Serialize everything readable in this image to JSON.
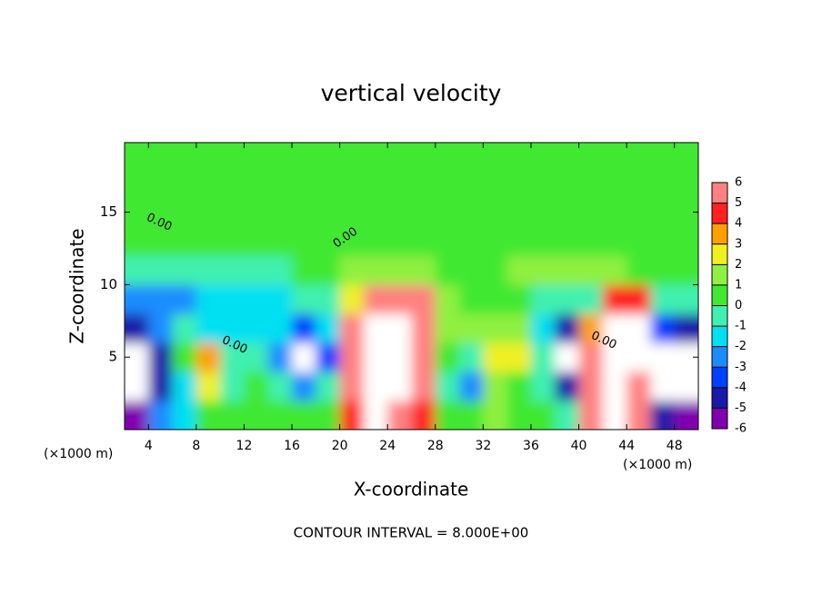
{
  "chart_data": {
    "type": "contour",
    "title": "vertical velocity",
    "xlabel": "X-coordinate",
    "ylabel": "Z-coordinate",
    "x_unit": "(×1000 m)",
    "y_unit": "(×1000 m)",
    "footer": "CONTOUR INTERVAL = 8.000E+00",
    "xlim": [
      2,
      50
    ],
    "ylim": [
      0,
      19.8
    ],
    "xticks": [
      4,
      8,
      12,
      16,
      20,
      24,
      28,
      32,
      36,
      40,
      44,
      48
    ],
    "yticks": [
      5,
      10,
      15
    ],
    "x": [
      3,
      5,
      7,
      9,
      11,
      13,
      15,
      17,
      19,
      21,
      23,
      25,
      27,
      29,
      31,
      33,
      35,
      37,
      39,
      41,
      43,
      45,
      47,
      49
    ],
    "y": [
      1,
      3,
      5,
      7,
      9,
      11,
      13,
      15,
      17,
      19
    ],
    "z": [
      [
        -5.5,
        -3,
        -2,
        0.5,
        0.5,
        0.5,
        0.5,
        0,
        0.5,
        4,
        6.5,
        5.5,
        4,
        0.5,
        0.5,
        1,
        0.5,
        0.5,
        -1,
        5,
        6.5,
        5,
        -5,
        -6
      ],
      [
        -8,
        -5,
        -2,
        2,
        -1,
        0.5,
        -1,
        -3,
        -1,
        5.5,
        8,
        8,
        5.5,
        -1,
        -2.5,
        1,
        0.5,
        -1,
        -5,
        6,
        8,
        5.5,
        -6.5,
        -8
      ],
      [
        -8,
        -5,
        0.5,
        3,
        -1,
        -1,
        -3,
        -7,
        -4,
        5.5,
        9,
        9,
        5.5,
        0.5,
        -1,
        2,
        2,
        -1,
        -8,
        5.5,
        9,
        7,
        -6.5,
        -8
      ],
      [
        -5,
        -3,
        -1,
        -1.5,
        -1.5,
        -1.5,
        -1.5,
        -4,
        -2,
        5.5,
        8,
        8,
        5,
        1,
        1,
        1,
        1,
        -2,
        -5,
        3,
        6.5,
        6.5,
        -4,
        -5
      ],
      [
        -3,
        -3,
        -3,
        -1.5,
        -1.5,
        -1.5,
        -1.5,
        -1,
        -1,
        2,
        5,
        5,
        5,
        1.5,
        0.5,
        0.5,
        0.5,
        -1,
        -1,
        -1,
        4,
        4,
        -1,
        -1
      ],
      [
        -0.5,
        -0.5,
        -0.5,
        -0.5,
        -0.5,
        -0.5,
        -0.5,
        0.3,
        0.3,
        1.5,
        1.5,
        1.5,
        1.5,
        0.3,
        0.3,
        0.5,
        1.5,
        1.5,
        1.5,
        1.5,
        1.5,
        0.8,
        0.5,
        0.5
      ],
      [
        0.3,
        0.3,
        0.3,
        0.3,
        0.3,
        0.3,
        0.3,
        0.3,
        0.3,
        0.5,
        0.5,
        0.5,
        0.3,
        0.3,
        0.3,
        0.5,
        0.8,
        0.8,
        0.8,
        0.8,
        0.8,
        0.8,
        0.5,
        0.3
      ],
      [
        0.3,
        0.3,
        0.3,
        0.3,
        0.3,
        0.3,
        0.3,
        0.3,
        0.3,
        0.3,
        0.3,
        0.3,
        0.3,
        0.3,
        0.3,
        0.3,
        0.3,
        0.3,
        0.3,
        0.3,
        0.3,
        0.3,
        0.3,
        0.3
      ],
      [
        0.3,
        0.3,
        0.3,
        0.3,
        0.3,
        0.3,
        0.3,
        0.3,
        0.3,
        0.3,
        0.3,
        0.3,
        0.3,
        0.3,
        0.3,
        0.3,
        0.3,
        0.3,
        0.3,
        0.3,
        0.3,
        0.3,
        0.3,
        0.3
      ],
      [
        0.3,
        0.3,
        0.3,
        0.3,
        0.3,
        0.3,
        0.3,
        0.3,
        0.3,
        0.3,
        0.3,
        0.3,
        0.3,
        0.3,
        0.3,
        0.3,
        0.3,
        0.3,
        0.3,
        0.3,
        0.3,
        0.3,
        0.3,
        0.3
      ]
    ],
    "clim": [
      -6,
      6
    ],
    "cticks": [
      -6,
      -5,
      -4,
      -3,
      -2,
      -1,
      0,
      1,
      2,
      3,
      4,
      5,
      6
    ],
    "colors": [
      "#8000b0",
      "#1a1aa8",
      "#0040ff",
      "#1a8cff",
      "#00e0f0",
      "#40f0b0",
      "#40e830",
      "#90f040",
      "#f0f020",
      "#ffa000",
      "#ff2020",
      "#ff8080"
    ],
    "out_of_range_color": "#ffffff",
    "contour_labels": [
      "0.00",
      "0.00",
      "0.00",
      "0.00"
    ]
  }
}
